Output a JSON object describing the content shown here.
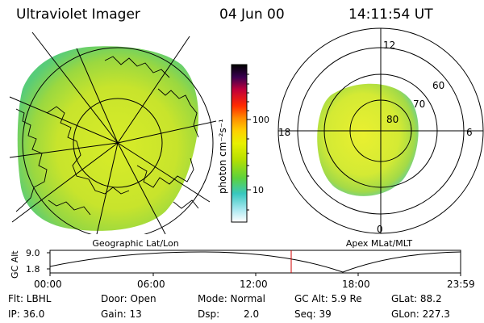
{
  "header": {
    "instrument": "Ultraviolet Imager",
    "date": "04 Jun 00",
    "time": "14:11:54 UT"
  },
  "colorbar": {
    "unit_label": "photon cm⁻²s⁻¹",
    "ticks": [
      "100",
      "10"
    ],
    "gradient": [
      "#000000",
      "#3a0050",
      "#c0003a",
      "#ff2a00",
      "#ff8c00",
      "#ffd000",
      "#e8f000",
      "#b8e000",
      "#5cd23c",
      "#38c8c0",
      "#a8e8f0",
      "#ffffff"
    ]
  },
  "left_panel": {
    "caption": "Geographic Lat/Lon"
  },
  "right_panel": {
    "caption": "Apex MLat/MLT",
    "mlt_labels": {
      "top": "12",
      "left": "18",
      "right": "6",
      "bottom": "0"
    },
    "lat_labels": [
      "60",
      "70",
      "80"
    ]
  },
  "altitude_plot": {
    "ylabel": "GC Alt",
    "yticks": [
      "9.0",
      "1.8"
    ],
    "xticks": [
      "00:00",
      "06:00",
      "12:00",
      "18:00",
      "23:59"
    ]
  },
  "footer": {
    "filter": "Flt: LBHL",
    "ip": "IP: 36.0",
    "door": "Door: Open",
    "gain": "Gain: 13",
    "mode": "Mode: Normal",
    "dsp_label": "Dsp:",
    "dsp_value": "2.0",
    "gc_alt": "GC Alt: 5.9 Re",
    "seq": "Seq: 39",
    "glat": "GLat: 88.2",
    "glon": "GLon: 227.3"
  }
}
